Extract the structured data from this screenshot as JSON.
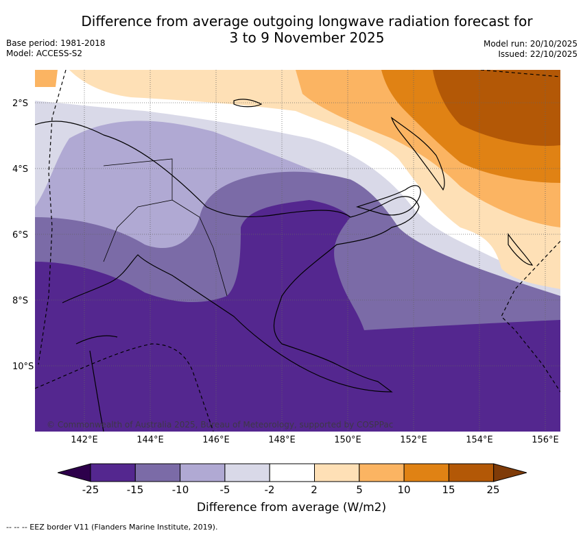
{
  "title": {
    "line1": "Difference from average outgoing longwave radiation forecast for",
    "line2": "3 to 9 November 2025"
  },
  "meta": {
    "base_period": "Base period: 1981-2018",
    "model": "Model: ACCESS-S2",
    "model_run": "Model run: 20/10/2025",
    "issued": "Issued: 22/10/2025"
  },
  "map": {
    "latitudes": [
      "2°S",
      "4°S",
      "6°S",
      "8°S",
      "10°S"
    ],
    "longitudes": [
      "142°E",
      "144°E",
      "146°E",
      "148°E",
      "150°E",
      "152°E",
      "154°E",
      "156°E"
    ],
    "copyright": "© Commonwealth of Australia 2025, Bureau of Meteorology, supported by COSPPac"
  },
  "colorbar": {
    "title": "Difference from average (W/m2)",
    "ticks": [
      "-25",
      "-15",
      "-10",
      "-5",
      "-2",
      "2",
      "5",
      "10",
      "15",
      "25"
    ],
    "colors": [
      "#2d004b",
      "#54278f",
      "#7b6ba7",
      "#b0a9d3",
      "#d9d9e8",
      "#ffffff",
      "#fee0b6",
      "#fbb462",
      "#e08214",
      "#b35806",
      "#7f3b08"
    ]
  },
  "footer": "--  --  -- EEZ border V11 (Flanders Marine Institute, 2019)."
}
